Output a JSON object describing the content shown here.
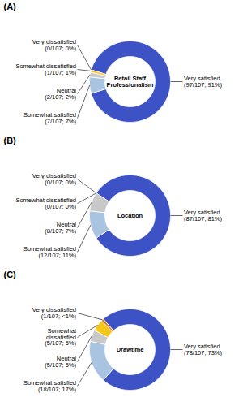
{
  "chart_data": [
    {
      "type": "pie",
      "title": "(A)",
      "annotations": [
        "Retail Staff\nProfessionalism"
      ],
      "categories": [
        "Very satisfied",
        "Somewhat satisfied",
        "Neutral",
        "Somewhat dissatisfied",
        "Very dissatisfied"
      ],
      "values": [
        97,
        7,
        2,
        1,
        0
      ],
      "value_labels": [
        "(97/107; 91%)",
        "(7/107; 7%)",
        "(2/107; 2%)",
        "(1/107; 1%)",
        "(0/107; 0%)"
      ],
      "colors": [
        "#3d52c5",
        "#a8c4e0",
        "#c8c8c8",
        "#f5c518",
        "#e07820"
      ],
      "data_labels": true
    },
    {
      "type": "pie",
      "title": "(B)",
      "annotations": [
        "Location"
      ],
      "categories": [
        "Very satisfied",
        "Somewhat satisfied",
        "Neutral",
        "Somewhat dissatisfied",
        "Very dissatisfied"
      ],
      "values": [
        87,
        12,
        8,
        0,
        0
      ],
      "value_labels": [
        "(87/107; 81%)",
        "(12/107; 11%)",
        "(8/107; 7%)",
        "(0/107; 0%)",
        "(0/107; 0%)"
      ],
      "colors": [
        "#3d52c5",
        "#a8c4e0",
        "#c8c8c8",
        "#f5c518",
        "#e07820"
      ],
      "data_labels": true
    },
    {
      "type": "pie",
      "title": "(C)",
      "annotations": [
        "Drawtime"
      ],
      "categories": [
        "Very satisfied",
        "Somewhat satisfied",
        "Neutral",
        "Somewhat\ndissatisfied",
        "Very dissatisfied"
      ],
      "values": [
        78,
        18,
        5,
        5,
        1
      ],
      "value_labels": [
        "(78/107; 73%)",
        "(18/107; 17%)",
        "(5/107; 5%)",
        "(5/107; 5%)",
        "(1/107; <1%)"
      ],
      "colors": [
        "#3d52c5",
        "#a8c4e0",
        "#c8c8c8",
        "#f5c518",
        "#e07820"
      ],
      "data_labels": true
    }
  ]
}
